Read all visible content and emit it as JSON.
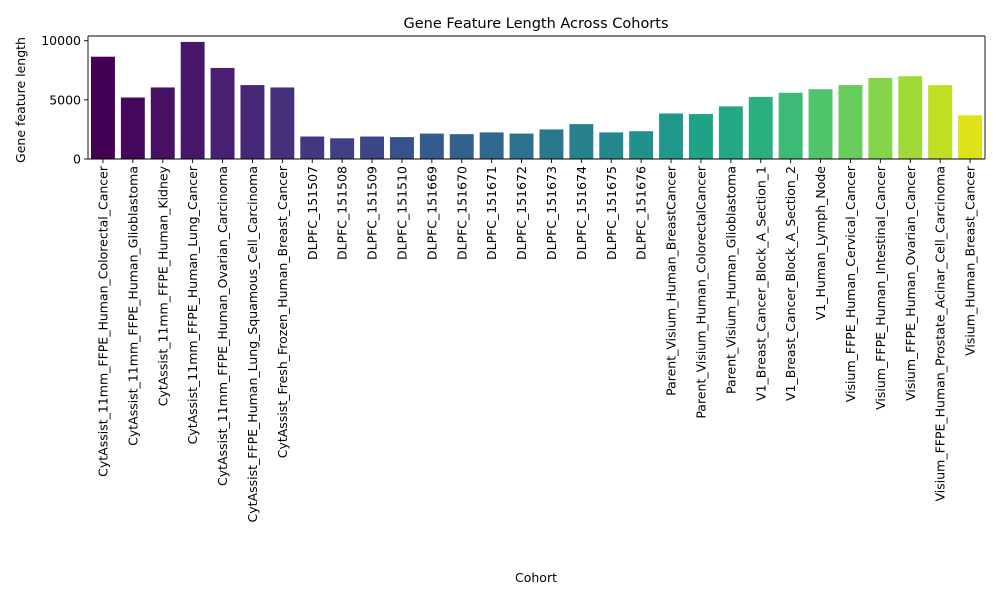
{
  "chart_data": {
    "type": "bar",
    "title": "Gene Feature Length Across Cohorts",
    "xlabel": "Cohort",
    "ylabel": "Gene feature length",
    "ylim": [
      0,
      10400
    ],
    "yticks": [
      0,
      5000,
      10000
    ],
    "ytick_labels": [
      "0",
      "5000",
      "10000"
    ],
    "grid": false,
    "colormap": "viridis",
    "categories": [
      "CytAssist_11mm_FFPE_Human_Colorectal_Cancer",
      "CytAssist_11mm_FFPE_Human_Glioblastoma",
      "CytAssist_11mm_FFPE_Human_Kidney",
      "CytAssist_11mm_FFPE_Human_Lung_Cancer",
      "CytAssist_11mm_FFPE_Human_Ovarian_Carcinoma",
      "CytAssist_FFPE_Human_Lung_Squamous_Cell_Carcinoma",
      "CytAssist_Fresh_Frozen_Human_Breast_Cancer",
      "DLPFC_151507",
      "DLPFC_151508",
      "DLPFC_151509",
      "DLPFC_151510",
      "DLPFC_151669",
      "DLPFC_151670",
      "DLPFC_151671",
      "DLPFC_151672",
      "DLPFC_151673",
      "DLPFC_151674",
      "DLPFC_151675",
      "DLPFC_151676",
      "Parent_Visium_Human_BreastCancer",
      "Parent_Visium_Human_ColorectalCancer",
      "Parent_Visium_Human_Glioblastoma",
      "V1_Breast_Cancer_Block_A_Section_1",
      "V1_Breast_Cancer_Block_A_Section_2",
      "V1_Human_Lymph_Node",
      "Visium_FFPE_Human_Cervical_Cancer",
      "Visium_FFPE_Human_Intestinal_Cancer",
      "Visium_FFPE_Human_Ovarian_Cancer",
      "Visium_FFPE_Human_Prostate_Acinar_Cell_Carcinoma",
      "Visium_Human_Breast_Cancer"
    ],
    "values": [
      8650,
      5200,
      6050,
      9900,
      7700,
      6250,
      6050,
      1900,
      1750,
      1900,
      1850,
      2150,
      2100,
      2250,
      2150,
      2500,
      2950,
      2250,
      2350,
      3850,
      3800,
      4450,
      5250,
      5600,
      5900,
      6250,
      6850,
      7000,
      6250,
      3700
    ],
    "colors": [
      "#440154",
      "#46085c",
      "#471063",
      "#481769",
      "#482071",
      "#472777",
      "#45307c",
      "#433781",
      "#404086",
      "#3c4788",
      "#38508b",
      "#355a8d",
      "#32618d",
      "#2f688e",
      "#2c718e",
      "#29788e",
      "#27808e",
      "#24878e",
      "#22908d",
      "#1f988b",
      "#1fa288",
      "#22a884",
      "#2ab07f",
      "#3cba76",
      "#4fc46a",
      "#68cd5c",
      "#84d44b",
      "#a0da39",
      "#bfdf25",
      "#dde318"
    ]
  }
}
